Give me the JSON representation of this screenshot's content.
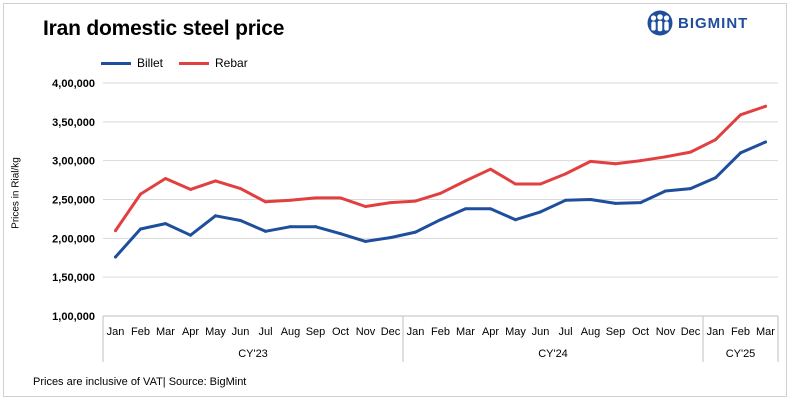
{
  "title": "Iran domestic steel price",
  "brand": {
    "name": "BIGMINT",
    "color": "#1f4e9c",
    "icon": "bigmint-people-logo-icon"
  },
  "footnote": "Prices are inclusive of VAT| Source: BigMint",
  "chart_data": {
    "type": "line",
    "title": "Iran domestic steel price",
    "ylabel": "Prices in Rial/kg",
    "xlabel": "",
    "ylim": [
      100000,
      400000
    ],
    "yticks": [
      100000,
      150000,
      200000,
      250000,
      300000,
      350000,
      400000
    ],
    "ytick_labels": [
      "1,00,000",
      "1,50,000",
      "2,00,000",
      "2,50,000",
      "3,00,000",
      "3,50,000",
      "4,00,000"
    ],
    "grid": true,
    "legend_position": "top-left",
    "categories": [
      "Jan",
      "Feb",
      "Mar",
      "Apr",
      "May",
      "Jun",
      "Jul",
      "Aug",
      "Sep",
      "Oct",
      "Nov",
      "Dec",
      "Jan",
      "Feb",
      "Mar",
      "Apr",
      "May",
      "Jun",
      "Jul",
      "Aug",
      "Sep",
      "Oct",
      "Nov",
      "Dec",
      "Jan",
      "Feb",
      "Mar"
    ],
    "groups": [
      {
        "label": "CY'23",
        "count": 12
      },
      {
        "label": "CY'24",
        "count": 12
      },
      {
        "label": "CY'25",
        "count": 3
      }
    ],
    "series": [
      {
        "name": "Billet",
        "color": "#1f4e9c",
        "values": [
          176000,
          212000,
          219000,
          204000,
          229000,
          223000,
          209000,
          215000,
          215000,
          206000,
          196000,
          201000,
          208000,
          224000,
          238000,
          238000,
          224000,
          234000,
          249000,
          250000,
          245000,
          246000,
          261000,
          264000,
          278000,
          310000,
          324000
        ]
      },
      {
        "name": "Rebar",
        "color": "#e24040",
        "values": [
          210000,
          257000,
          277000,
          263000,
          274000,
          264000,
          247000,
          249000,
          252000,
          252000,
          241000,
          246000,
          248000,
          258000,
          274000,
          289000,
          270000,
          270000,
          283000,
          299000,
          296000,
          300000,
          305000,
          311000,
          327000,
          359000,
          370000
        ]
      }
    ]
  }
}
